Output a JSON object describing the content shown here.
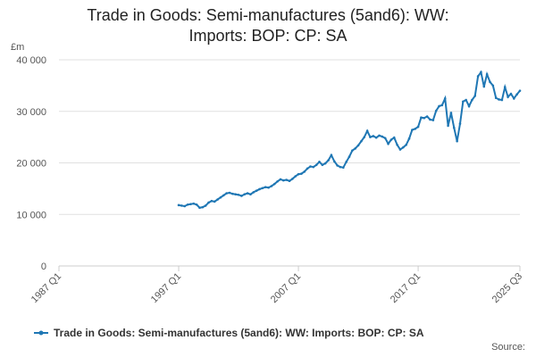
{
  "chart_data": {
    "type": "line",
    "title": "Trade in Goods: Semi-manufactures (5and6): WW: Imports: BOP: CP: SA",
    "y_label": "£m",
    "source": "Source:",
    "x": [
      "1997 Q1",
      "1997 Q2",
      "1997 Q3",
      "1997 Q4",
      "1998 Q1",
      "1998 Q2",
      "1998 Q3",
      "1998 Q4",
      "1999 Q1",
      "1999 Q2",
      "1999 Q3",
      "1999 Q4",
      "2000 Q1",
      "2000 Q2",
      "2000 Q3",
      "2000 Q4",
      "2001 Q1",
      "2001 Q2",
      "2001 Q3",
      "2001 Q4",
      "2002 Q1",
      "2002 Q2",
      "2002 Q3",
      "2002 Q4",
      "2003 Q1",
      "2003 Q2",
      "2003 Q3",
      "2003 Q4",
      "2004 Q1",
      "2004 Q2",
      "2004 Q3",
      "2004 Q4",
      "2005 Q1",
      "2005 Q2",
      "2005 Q3",
      "2005 Q4",
      "2006 Q1",
      "2006 Q2",
      "2006 Q3",
      "2006 Q4",
      "2007 Q1",
      "2007 Q2",
      "2007 Q3",
      "2007 Q4",
      "2008 Q1",
      "2008 Q2",
      "2008 Q3",
      "2008 Q4",
      "2009 Q1",
      "2009 Q2",
      "2009 Q3",
      "2009 Q4",
      "2010 Q1",
      "2010 Q2",
      "2010 Q3",
      "2010 Q4",
      "2011 Q1",
      "2011 Q2",
      "2011 Q3",
      "2011 Q4",
      "2012 Q1",
      "2012 Q2",
      "2012 Q3",
      "2012 Q4",
      "2013 Q1",
      "2013 Q2",
      "2013 Q3",
      "2013 Q4",
      "2014 Q1",
      "2014 Q2",
      "2014 Q3",
      "2014 Q4",
      "2015 Q1",
      "2015 Q2",
      "2015 Q3",
      "2015 Q4",
      "2016 Q1",
      "2016 Q2",
      "2016 Q3",
      "2016 Q4",
      "2017 Q1",
      "2017 Q2",
      "2017 Q3",
      "2017 Q4",
      "2018 Q1",
      "2018 Q2",
      "2018 Q3",
      "2018 Q4",
      "2019 Q1",
      "2019 Q2",
      "2019 Q3",
      "2019 Q4",
      "2020 Q1",
      "2020 Q2",
      "2020 Q3",
      "2020 Q4",
      "2021 Q1",
      "2021 Q2",
      "2021 Q3",
      "2021 Q4",
      "2022 Q1",
      "2022 Q2",
      "2022 Q3",
      "2022 Q4",
      "2023 Q1",
      "2023 Q2",
      "2023 Q3",
      "2023 Q4",
      "2024 Q1",
      "2024 Q2",
      "2024 Q3",
      "2024 Q4",
      "2025 Q1",
      "2025 Q2",
      "2025 Q3"
    ],
    "series": [
      {
        "name": "Trade in Goods: Semi-manufactures (5and6): WW: Imports: BOP: CP: SA",
        "color": "#1f77b4",
        "values": [
          11800,
          11700,
          11600,
          11900,
          12000,
          12100,
          11900,
          11300,
          11400,
          11700,
          12300,
          12600,
          12500,
          12900,
          13300,
          13700,
          14100,
          14200,
          14000,
          13900,
          13800,
          13600,
          13900,
          14100,
          13900,
          14300,
          14600,
          14900,
          15100,
          15300,
          15200,
          15500,
          15900,
          16400,
          16800,
          16600,
          16700,
          16500,
          16900,
          17400,
          17800,
          17900,
          18300,
          18900,
          19300,
          19200,
          19600,
          20200,
          19600,
          19900,
          20500,
          21500,
          20300,
          19500,
          19200,
          19100,
          20200,
          21200,
          22400,
          22800,
          23400,
          24200,
          25000,
          26200,
          25000,
          25200,
          24900,
          25300,
          25100,
          24800,
          23700,
          24500,
          24900,
          23500,
          22600,
          23000,
          23500,
          24700,
          26400,
          26600,
          27000,
          28800,
          28700,
          29000,
          28400,
          28300,
          30100,
          31000,
          31200,
          32500,
          27200,
          29700,
          26800,
          24200,
          27600,
          31900,
          32200,
          31000,
          32200,
          33000,
          36800,
          37600,
          34800,
          37200,
          35700,
          35000,
          32600,
          32300,
          32200,
          34700,
          32800,
          33400,
          32500,
          33300,
          34000
        ]
      }
    ],
    "xlim": [
      "1987 Q1",
      "2025 Q3"
    ],
    "xticks": [
      "1987 Q1",
      "1997 Q1",
      "2007 Q1",
      "2017 Q1",
      "2025 Q3"
    ],
    "ylim": [
      0,
      40000
    ],
    "yticks": [
      0,
      {
        "value": 10000,
        "label": "10 000"
      },
      {
        "value": 20000,
        "label": "20 000"
      },
      {
        "value": 30000,
        "label": "30 000"
      },
      {
        "value": 40000,
        "label": "40 000"
      }
    ],
    "grid": true
  }
}
